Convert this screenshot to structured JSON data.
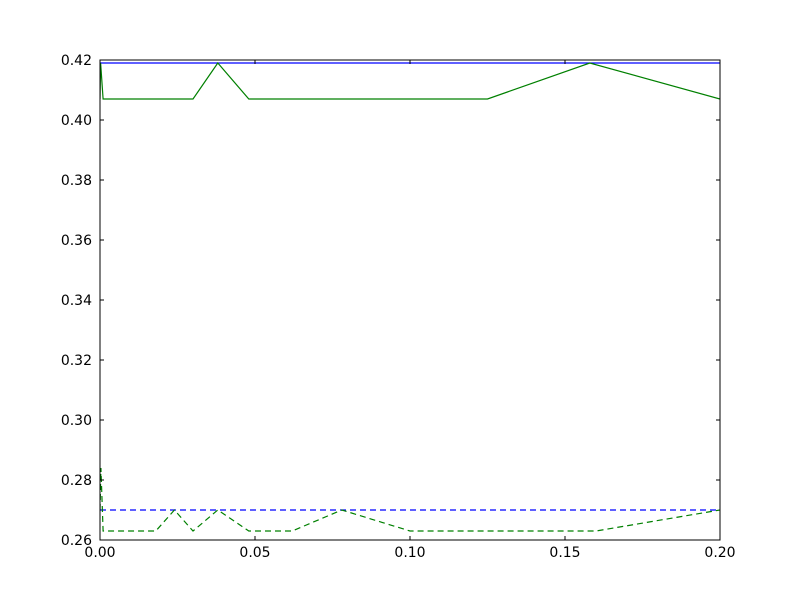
{
  "chart_data": {
    "type": "line",
    "title": "",
    "xlabel": "",
    "ylabel": "",
    "xlim": [
      0.0,
      0.2
    ],
    "ylim": [
      0.26,
      0.42
    ],
    "xticks": [
      0.0,
      0.05,
      0.1,
      0.15,
      0.2
    ],
    "xtick_labels": [
      "0.00",
      "0.05",
      "0.10",
      "0.15",
      "0.20"
    ],
    "yticks": [
      0.26,
      0.28,
      0.3,
      0.32,
      0.34,
      0.36,
      0.38,
      0.4,
      0.42
    ],
    "ytick_labels": [
      "0.26",
      "0.28",
      "0.30",
      "0.32",
      "0.34",
      "0.36",
      "0.38",
      "0.40",
      "0.42"
    ],
    "grid": false,
    "legend": "none",
    "series": [
      {
        "color": "#0000ff",
        "style": "solid",
        "x": [
          0.0,
          0.2
        ],
        "y": [
          0.419,
          0.419
        ]
      },
      {
        "color": "#008000",
        "style": "solid",
        "x": [
          0.0,
          0.0002,
          0.001,
          0.03,
          0.038,
          0.048,
          0.125,
          0.158,
          0.2
        ],
        "y": [
          0.407,
          0.419,
          0.407,
          0.407,
          0.419,
          0.407,
          0.407,
          0.419,
          0.407
        ]
      },
      {
        "color": "#0000ff",
        "style": "dashed",
        "x": [
          0.0,
          0.2
        ],
        "y": [
          0.27,
          0.27
        ]
      },
      {
        "color": "#008000",
        "style": "dashed",
        "x": [
          0.0,
          0.0003,
          0.001,
          0.018,
          0.024,
          0.03,
          0.038,
          0.048,
          0.062,
          0.078,
          0.1,
          0.16,
          0.2
        ],
        "y": [
          0.27,
          0.284,
          0.263,
          0.263,
          0.27,
          0.263,
          0.27,
          0.263,
          0.263,
          0.27,
          0.263,
          0.263,
          0.27
        ]
      }
    ]
  }
}
